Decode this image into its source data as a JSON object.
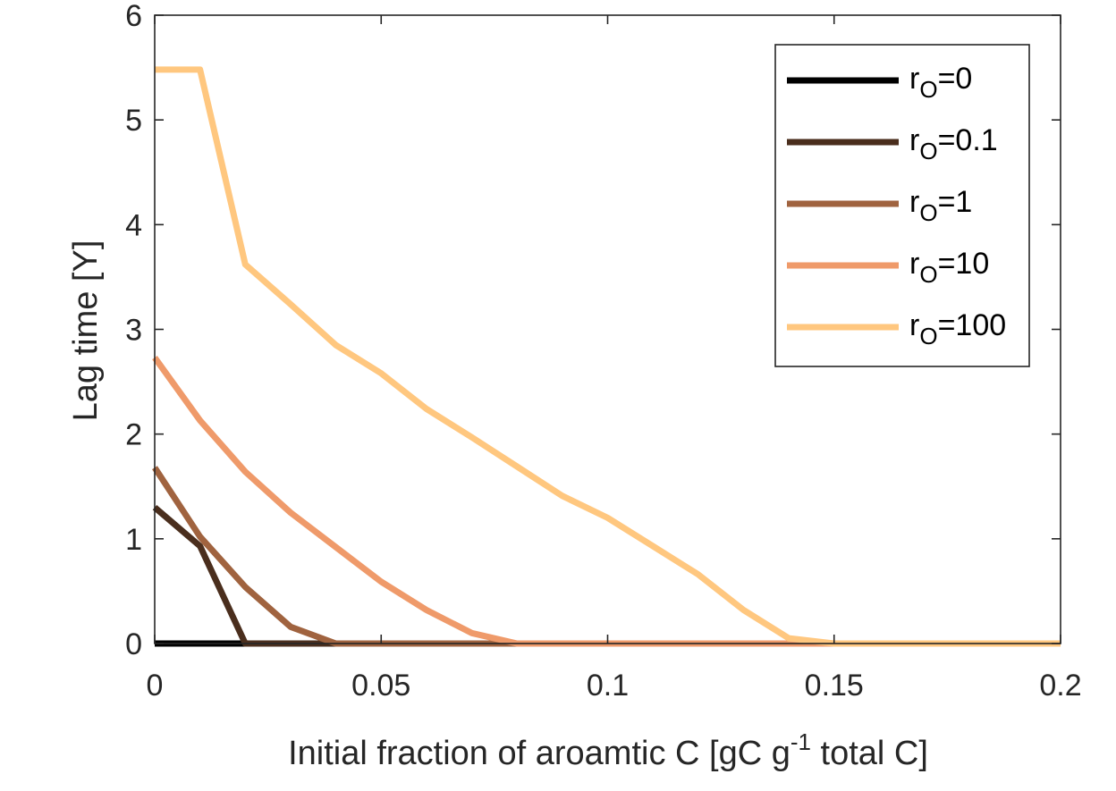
{
  "chart_data": {
    "type": "line",
    "title": "",
    "xlabel": {
      "text_before": "Initial fraction of aroamtic C [gC g",
      "superscript": "-1",
      "text_after": " total C]"
    },
    "ylabel": "Lag time [Y]",
    "xlim": [
      0,
      0.2
    ],
    "ylim": [
      0,
      6
    ],
    "x_ticks": [
      0,
      0.05,
      0.1,
      0.15,
      0.2
    ],
    "x_tick_labels": [
      "0",
      "0.05",
      "0.1",
      "0.15",
      "0.2"
    ],
    "y_ticks": [
      0,
      1,
      2,
      3,
      4,
      5,
      6
    ],
    "y_tick_labels": [
      "0",
      "1",
      "2",
      "3",
      "4",
      "5",
      "6"
    ],
    "grid": false,
    "legend_position": "top-right",
    "x": [
      0,
      0.01,
      0.02,
      0.03,
      0.04,
      0.05,
      0.06,
      0.07,
      0.08,
      0.09,
      0.1,
      0.11,
      0.12,
      0.13,
      0.14,
      0.15,
      0.16,
      0.17,
      0.18,
      0.19,
      0.2
    ],
    "series": [
      {
        "name": "r_O=0",
        "label_base": "r",
        "label_sub": "O",
        "label_value": "=0",
        "color": "#000000",
        "values": [
          0,
          0,
          0,
          0,
          0,
          0,
          0,
          0,
          0,
          0,
          0,
          0,
          0,
          0,
          0,
          0,
          0,
          0,
          0,
          0,
          0
        ]
      },
      {
        "name": "r_O=0.1",
        "label_base": "r",
        "label_sub": "O",
        "label_value": "=0.1",
        "color": "#4a2e1d",
        "values": [
          1.3,
          0.93,
          0,
          0,
          0,
          0,
          0,
          0,
          0,
          0,
          0,
          0,
          0,
          0,
          0,
          0,
          0,
          0,
          0,
          0,
          0
        ]
      },
      {
        "name": "r_O=1",
        "label_base": "r",
        "label_sub": "O",
        "label_value": "=1",
        "color": "#a0633f",
        "values": [
          1.68,
          1.02,
          0.54,
          0.16,
          0,
          0,
          0,
          0,
          0,
          0,
          0,
          0,
          0,
          0,
          0,
          0,
          0,
          0,
          0,
          0,
          0
        ]
      },
      {
        "name": "r_O=10",
        "label_base": "r",
        "label_sub": "O",
        "label_value": "=10",
        "color": "#ef9a6a",
        "values": [
          2.73,
          2.13,
          1.64,
          1.25,
          0.92,
          0.59,
          0.32,
          0.1,
          0,
          0,
          0,
          0,
          0,
          0,
          0,
          0,
          0,
          0,
          0,
          0,
          0
        ]
      },
      {
        "name": "r_O=100",
        "label_base": "r",
        "label_sub": "O",
        "label_value": "=100",
        "color": "#ffc77f",
        "values": [
          5.48,
          5.48,
          3.62,
          3.24,
          2.85,
          2.58,
          2.24,
          1.97,
          1.69,
          1.41,
          1.2,
          0.93,
          0.66,
          0.32,
          0.05,
          0,
          0,
          0,
          0,
          0,
          0
        ]
      }
    ]
  }
}
